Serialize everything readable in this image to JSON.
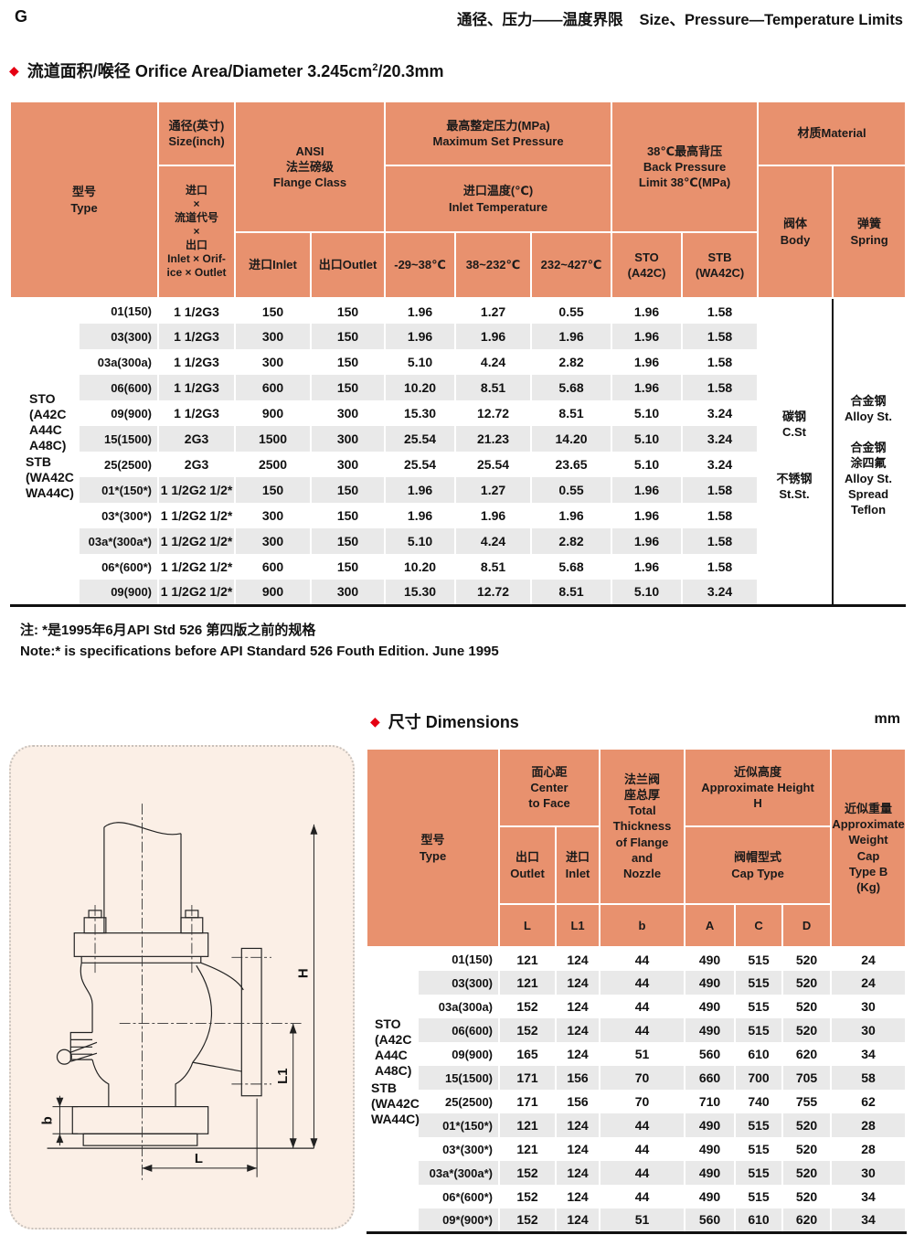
{
  "page": {
    "corner": "G",
    "title_zh": "通径、压力——温度界限",
    "title_en": "Size、Pressure—Temperature Limits"
  },
  "colors": {
    "header_bg": "#E8916E",
    "band": "#E9E9E9",
    "accent_red": "#E50012",
    "panel_bg": "#FBEFE6",
    "rule": "#111111"
  },
  "section_orifice": {
    "title_zh": "流道面积/喉径",
    "title_en": "Orifice Area/Diameter",
    "value_base": "3.245cm",
    "value_sup": "2",
    "value_rest": "/20.3mm"
  },
  "table1": {
    "headers": {
      "type": "型号\nType",
      "size": "通径(英寸)\nSize(inch)",
      "bore": "进口\n×\n流道代号\n×\n出口\nInlet × Orif-\nice × Outlet",
      "flange": "ANSI\n法兰磅级\nFlange Class",
      "inlet": "进口Inlet",
      "outlet": "出口Outlet",
      "msp": "最高整定压力(MPa)\nMaximum Set Pressure",
      "inlet_temp": "进口温度(℃)\nInlet Temperature",
      "temp1": "-29~38℃",
      "temp2": "38~232℃",
      "temp3": "232~427℃",
      "bp": "38℃最高背压\nBack Pressure\nLimit 38℃(MPa)",
      "sto": "STO\n(A42C)",
      "stb": "STB\n(WA42C)",
      "material": "材质Material",
      "body": "阀体\nBody",
      "spring": "弹簧\nSpring"
    },
    "group_sto": "STO\n(A42C\nA44C\nA48C)",
    "group_stb": "STB\n(WA42C\nWA44C)",
    "material_body_1": "碳钢\nC.St",
    "material_body_2": "不锈钢\nSt.St.",
    "material_spring_1": "合金钢\nAlloy St.",
    "material_spring_2": "合金钢\n涂四氟\nAlloy St.\nSpread\nTeflon",
    "rows": [
      {
        "type": "01(150)",
        "size": "1 1/2G3",
        "inlet": "150",
        "outlet": "150",
        "t1": "1.96",
        "t2": "1.27",
        "t3": "0.55",
        "sto": "1.96",
        "stb": "1.58"
      },
      {
        "type": "03(300)",
        "size": "1 1/2G3",
        "inlet": "300",
        "outlet": "150",
        "t1": "1.96",
        "t2": "1.96",
        "t3": "1.96",
        "sto": "1.96",
        "stb": "1.58"
      },
      {
        "type": "03a(300a)",
        "size": "1 1/2G3",
        "inlet": "300",
        "outlet": "150",
        "t1": "5.10",
        "t2": "4.24",
        "t3": "2.82",
        "sto": "1.96",
        "stb": "1.58"
      },
      {
        "type": "06(600)",
        "size": "1 1/2G3",
        "inlet": "600",
        "outlet": "150",
        "t1": "10.20",
        "t2": "8.51",
        "t3": "5.68",
        "sto": "1.96",
        "stb": "1.58"
      },
      {
        "type": "09(900)",
        "size": "1 1/2G3",
        "inlet": "900",
        "outlet": "300",
        "t1": "15.30",
        "t2": "12.72",
        "t3": "8.51",
        "sto": "5.10",
        "stb": "3.24"
      },
      {
        "type": "15(1500)",
        "size": "2G3",
        "inlet": "1500",
        "outlet": "300",
        "t1": "25.54",
        "t2": "21.23",
        "t3": "14.20",
        "sto": "5.10",
        "stb": "3.24"
      },
      {
        "type": "25(2500)",
        "size": "2G3",
        "inlet": "2500",
        "outlet": "300",
        "t1": "25.54",
        "t2": "25.54",
        "t3": "23.65",
        "sto": "5.10",
        "stb": "3.24"
      },
      {
        "type": "01*(150*)",
        "size": "1 1/2G2 1/2*",
        "inlet": "150",
        "outlet": "150",
        "t1": "1.96",
        "t2": "1.27",
        "t3": "0.55",
        "sto": "1.96",
        "stb": "1.58"
      },
      {
        "type": "03*(300*)",
        "size": "1 1/2G2 1/2*",
        "inlet": "300",
        "outlet": "150",
        "t1": "1.96",
        "t2": "1.96",
        "t3": "1.96",
        "sto": "1.96",
        "stb": "1.58"
      },
      {
        "type": "03a*(300a*)",
        "size": "1 1/2G2 1/2*",
        "inlet": "300",
        "outlet": "150",
        "t1": "5.10",
        "t2": "4.24",
        "t3": "2.82",
        "sto": "1.96",
        "stb": "1.58"
      },
      {
        "type": "06*(600*)",
        "size": "1 1/2G2 1/2*",
        "inlet": "600",
        "outlet": "150",
        "t1": "10.20",
        "t2": "8.51",
        "t3": "5.68",
        "sto": "1.96",
        "stb": "1.58"
      },
      {
        "type": "09(900)",
        "size": "1 1/2G2 1/2*",
        "inlet": "900",
        "outlet": "300",
        "t1": "15.30",
        "t2": "12.72",
        "t3": "8.51",
        "sto": "5.10",
        "stb": "3.24"
      }
    ]
  },
  "note": {
    "line1": "注: *是1995年6月API Std 526 第四版之前的规格",
    "line2": "Note:* is specifications before API Standard 526 Fouth Edition. June 1995"
  },
  "section_dimensions": {
    "title_zh": "尺寸",
    "title_en": "Dimensions",
    "unit": "mm"
  },
  "table2": {
    "headers": {
      "type": "型号\nType",
      "ctf": "面心距\nCenter\nto Face",
      "outlet": "出口\nOutlet",
      "inlet": "进口\nInlet",
      "thickness": "法兰阀\n座总厚\nTotal\nThickness\nof Flange\nand\nNozzle",
      "height": "近似高度\nApproximate Height\nH",
      "cap": "阀帽型式\nCap Type",
      "weight": "近似重量\nApproximate\nWeight\nCap\nType B\n(Kg)",
      "L": "L",
      "L1": "L1",
      "b": "b",
      "A": "A",
      "C": "C",
      "D": "D"
    },
    "group_sto": "STO\n(A42C\nA44C\nA48C)",
    "group_stb": "STB\n(WA42C\nWA44C)",
    "rows": [
      {
        "type": "01(150)",
        "L": "121",
        "L1": "124",
        "b": "44",
        "A": "490",
        "C": "515",
        "D": "520",
        "W": "24"
      },
      {
        "type": "03(300)",
        "L": "121",
        "L1": "124",
        "b": "44",
        "A": "490",
        "C": "515",
        "D": "520",
        "W": "24"
      },
      {
        "type": "03a(300a)",
        "L": "152",
        "L1": "124",
        "b": "44",
        "A": "490",
        "C": "515",
        "D": "520",
        "W": "30"
      },
      {
        "type": "06(600)",
        "L": "152",
        "L1": "124",
        "b": "44",
        "A": "490",
        "C": "515",
        "D": "520",
        "W": "30"
      },
      {
        "type": "09(900)",
        "L": "165",
        "L1": "124",
        "b": "51",
        "A": "560",
        "C": "610",
        "D": "620",
        "W": "34"
      },
      {
        "type": "15(1500)",
        "L": "171",
        "L1": "156",
        "b": "70",
        "A": "660",
        "C": "700",
        "D": "705",
        "W": "58"
      },
      {
        "type": "25(2500)",
        "L": "171",
        "L1": "156",
        "b": "70",
        "A": "710",
        "C": "740",
        "D": "755",
        "W": "62"
      },
      {
        "type": "01*(150*)",
        "L": "121",
        "L1": "124",
        "b": "44",
        "A": "490",
        "C": "515",
        "D": "520",
        "W": "28"
      },
      {
        "type": "03*(300*)",
        "L": "121",
        "L1": "124",
        "b": "44",
        "A": "490",
        "C": "515",
        "D": "520",
        "W": "28"
      },
      {
        "type": "03a*(300a*)",
        "L": "152",
        "L1": "124",
        "b": "44",
        "A": "490",
        "C": "515",
        "D": "520",
        "W": "30"
      },
      {
        "type": "06*(600*)",
        "L": "152",
        "L1": "124",
        "b": "44",
        "A": "490",
        "C": "515",
        "D": "520",
        "W": "34"
      },
      {
        "type": "09*(900*)",
        "L": "152",
        "L1": "124",
        "b": "51",
        "A": "560",
        "C": "610",
        "D": "620",
        "W": "34"
      }
    ]
  },
  "diagram": {
    "labels": {
      "H": "H",
      "L": "L",
      "L1": "L1",
      "b": "b"
    }
  }
}
